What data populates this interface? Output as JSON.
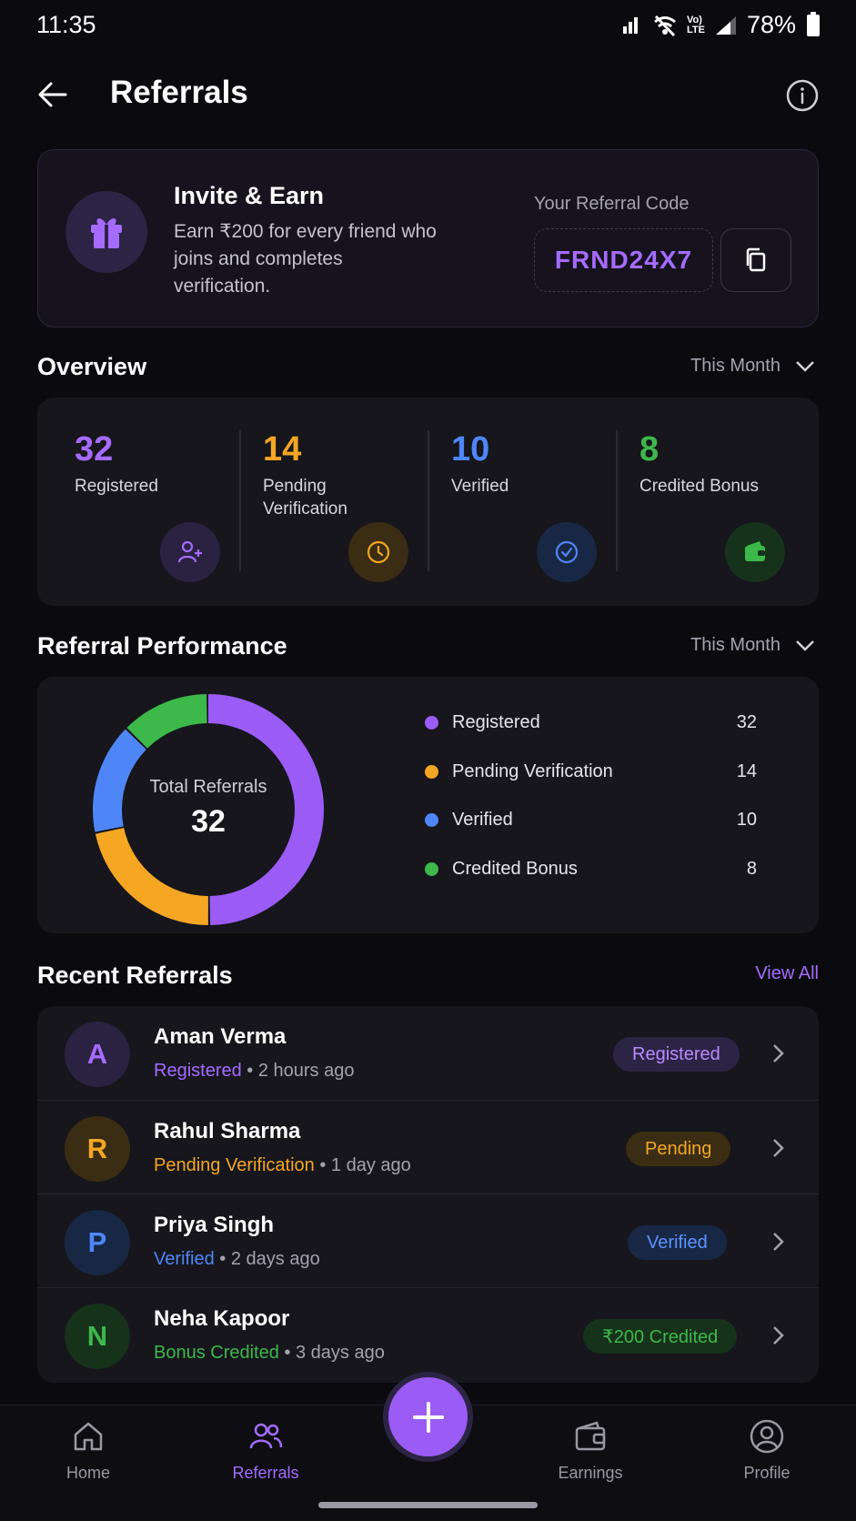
{
  "status_bar": {
    "time": "11:35",
    "network_top": "Vo)",
    "network_bottom": "LTE",
    "battery": "78%"
  },
  "header": {
    "title": "Referrals"
  },
  "invite": {
    "title": "Invite & Earn",
    "description": "Earn ₹200 for every friend who joins and completes verification.",
    "code_label": "Your Referral Code",
    "code": "FRND24X7"
  },
  "overview": {
    "title": "Overview",
    "period": "This Month",
    "stats": [
      {
        "value": "32",
        "label": "Registered",
        "color": "#a56bff",
        "icon": "user-plus-icon"
      },
      {
        "value": "14",
        "label": "Pending Verification",
        "color": "#f5a623",
        "icon": "clock-icon"
      },
      {
        "value": "10",
        "label": "Verified",
        "color": "#4f86f7",
        "icon": "check-circle-icon"
      },
      {
        "value": "8",
        "label": "Credited Bonus",
        "color": "#3db84a",
        "icon": "wallet-icon"
      }
    ]
  },
  "performance": {
    "title": "Referral Performance",
    "period": "This Month",
    "center_label": "Total Referrals",
    "center_value": "32"
  },
  "chart_data": {
    "type": "pie",
    "categories": [
      "Registered",
      "Pending Verification",
      "Verified",
      "Credited Bonus"
    ],
    "values": [
      32,
      14,
      10,
      8
    ],
    "colors": [
      "#9b5cf6",
      "#f5a623",
      "#4f86f7",
      "#3db84a"
    ],
    "legend_placement": "right"
  },
  "recent": {
    "title": "Recent Referrals",
    "view_all": "View All",
    "items": [
      {
        "initial": "A",
        "name": "Aman Verma",
        "status": "Registered",
        "time": "2 hours ago",
        "badge": "Registered",
        "color": "#a56bff"
      },
      {
        "initial": "R",
        "name": "Rahul Sharma",
        "status": "Pending Verification",
        "time": "1 day ago",
        "badge": "Pending",
        "color": "#f5a623"
      },
      {
        "initial": "P",
        "name": "Priya Singh",
        "status": "Verified",
        "time": "2 days ago",
        "badge": "Verified",
        "color": "#4f86f7"
      },
      {
        "initial": "N",
        "name": "Neha Kapoor",
        "status": "Bonus Credited",
        "time": "3 days ago",
        "badge": "₹200 Credited",
        "color": "#3db84a"
      }
    ]
  },
  "nav": {
    "items": [
      {
        "label": "Home",
        "icon": "home-icon"
      },
      {
        "label": "Referrals",
        "icon": "users-icon",
        "active": true
      },
      {
        "label": "Earnings",
        "icon": "wallet-icon"
      },
      {
        "label": "Profile",
        "icon": "profile-icon"
      }
    ],
    "accent": "#a56bff"
  }
}
